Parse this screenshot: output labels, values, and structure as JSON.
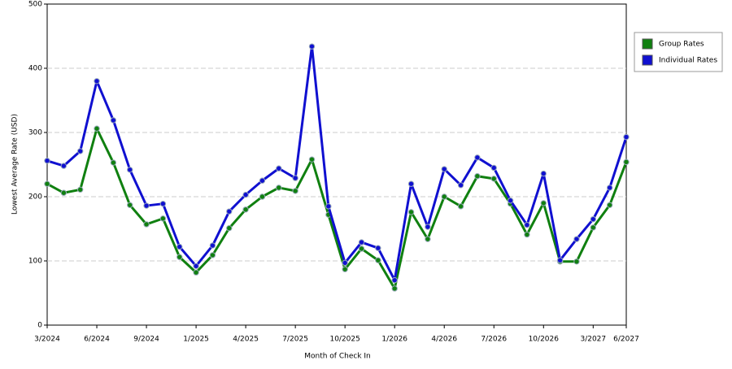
{
  "chart_data": {
    "type": "line",
    "x_label": "Month of Check In",
    "y_label": "Lowest Average Rate (USD)",
    "categories": [
      "3/2024",
      null,
      null,
      "6/2024",
      null,
      null,
      "9/2024",
      null,
      null,
      "1/2025",
      null,
      null,
      "4/2025",
      null,
      null,
      "7/2025",
      null,
      null,
      "10/2025",
      null,
      null,
      "1/2026",
      null,
      null,
      "4/2026",
      null,
      null,
      "7/2026",
      null,
      null,
      "10/2026",
      null,
      null,
      "3/2027",
      null,
      "6/2027"
    ],
    "series": [
      {
        "name": "Group Rates",
        "color": "#108010",
        "values": [
          220,
          206,
          211,
          306,
          253,
          187,
          157,
          166,
          106,
          82,
          109,
          151,
          180,
          200,
          214,
          209,
          258,
          172,
          87,
          119,
          101,
          57,
          176,
          134,
          200,
          185,
          232,
          228,
          189,
          141,
          190,
          99,
          99,
          152,
          187,
          254
        ]
      },
      {
        "name": "Individual Rates",
        "color": "#1010d0",
        "values": [
          256,
          248,
          271,
          380,
          319,
          242,
          186,
          189,
          122,
          92,
          124,
          177,
          203,
          225,
          244,
          229,
          434,
          185,
          97,
          129,
          120,
          70,
          220,
          153,
          243,
          218,
          261,
          245,
          194,
          156,
          236,
          101,
          134,
          165,
          214,
          293
        ]
      }
    ],
    "ylim": [
      0,
      500
    ],
    "yticks": [
      0,
      100,
      200,
      300,
      400,
      500
    ],
    "grid": true,
    "legend": "right"
  }
}
